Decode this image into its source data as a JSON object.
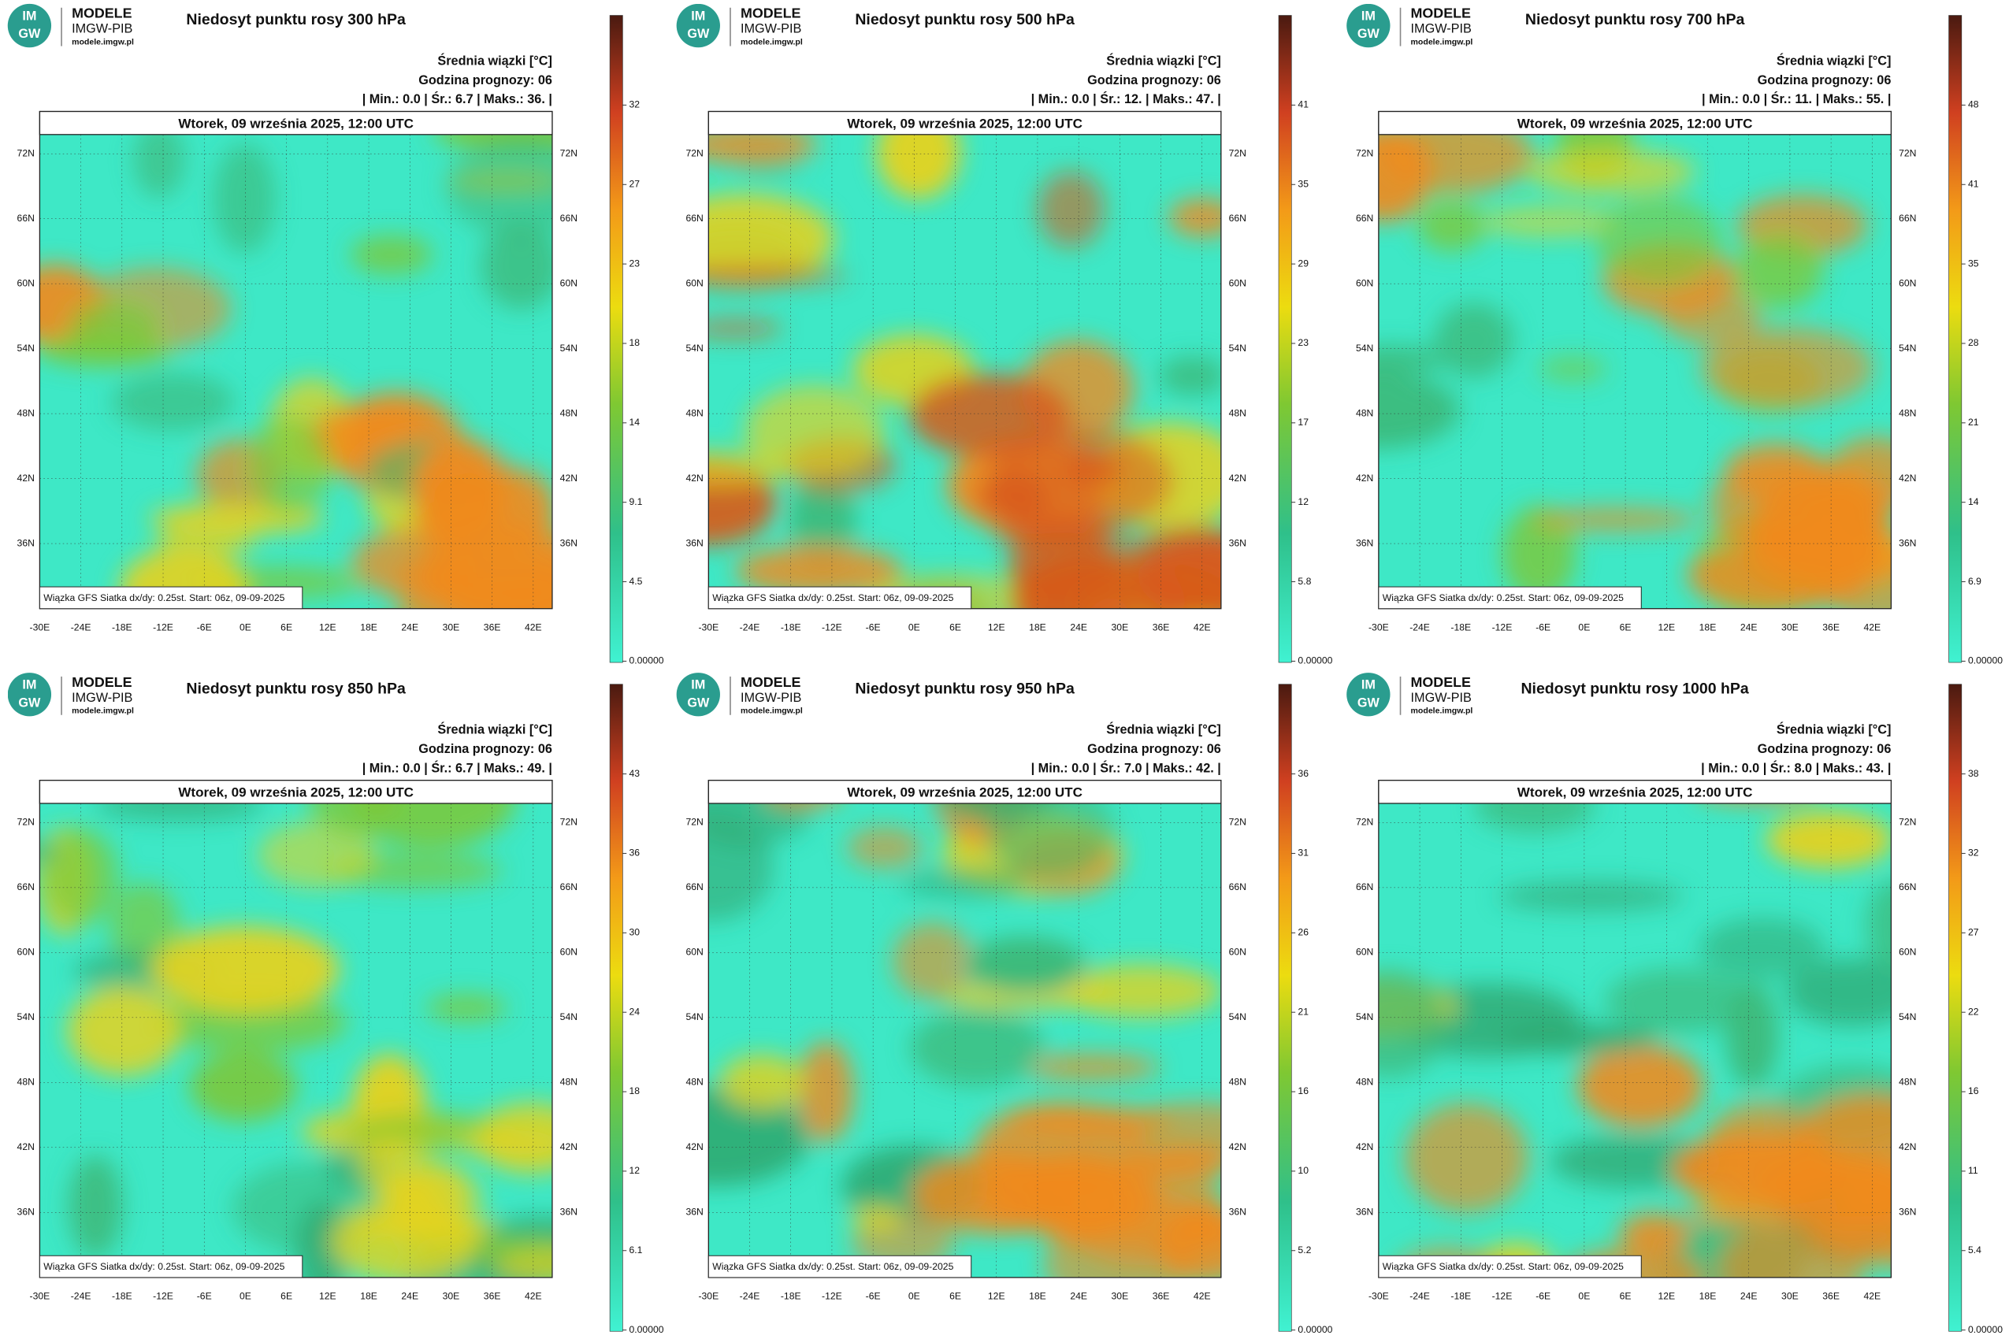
{
  "common": {
    "logo_mark": [
      "IM",
      "GW"
    ],
    "logo_title": "MODELE",
    "logo_org": "IMGW-PIB",
    "logo_url": "modele.imgw.pl",
    "mean_label": "Średnia wiązki [°C]",
    "forecast_hour": "Godzina prognozy: 06",
    "date": "Wtorek, 09 września 2025, 12:00 UTC",
    "footer": "Wiązka GFS Siatka dx/dy: 0.25st. Start: 06z, 09-09-2025",
    "lat_labels": [
      "72N",
      "66N",
      "60N",
      "54N",
      "48N",
      "42N",
      "36N"
    ],
    "lon_labels": [
      "-30E",
      "-24E",
      "-18E",
      "-12E",
      "-6E",
      "0E",
      "6E",
      "12E",
      "18E",
      "24E",
      "30E",
      "36E",
      "42E"
    ]
  },
  "panels": [
    {
      "title": "Niedosyt punktu rosy 300 hPa",
      "stats": "| Min.:  0.0 | Śr.:  6.7 | Maks.:  36. |",
      "colorbar": [
        "0.00000",
        "4.5",
        "9.1",
        "14",
        "18",
        "23",
        "27",
        "32"
      ]
    },
    {
      "title": "Niedosyt punktu rosy 500 hPa",
      "stats": "| Min.:  0.0 | Śr.:  12. | Maks.:  47. |",
      "colorbar": [
        "0.00000",
        "5.8",
        "12",
        "17",
        "23",
        "29",
        "35",
        "41"
      ]
    },
    {
      "title": "Niedosyt punktu rosy 700 hPa",
      "stats": "| Min.:  0.0 | Śr.:  11. | Maks.:  55. |",
      "colorbar": [
        "0.00000",
        "6.9",
        "14",
        "21",
        "28",
        "35",
        "41",
        "48"
      ]
    },
    {
      "title": "Niedosyt punktu rosy 850 hPa",
      "stats": "| Min.:  0.0 | Śr.:  6.7 | Maks.:  49. |",
      "colorbar": [
        "0.00000",
        "6.1",
        "12",
        "18",
        "24",
        "30",
        "36",
        "43"
      ]
    },
    {
      "title": "Niedosyt punktu rosy 950 hPa",
      "stats": "| Min.:  0.0 | Śr.:  7.0 | Maks.:  42. |",
      "colorbar": [
        "0.00000",
        "5.2",
        "10",
        "16",
        "21",
        "26",
        "31",
        "36"
      ]
    },
    {
      "title": "Niedosyt punktu rosy 1000 hPa",
      "stats": "| Min.:  0.0 | Śr.:  8.0 | Maks.:  43. |",
      "colorbar": [
        "0.00000",
        "5.4",
        "11",
        "16",
        "22",
        "27",
        "32",
        "38"
      ]
    }
  ]
}
